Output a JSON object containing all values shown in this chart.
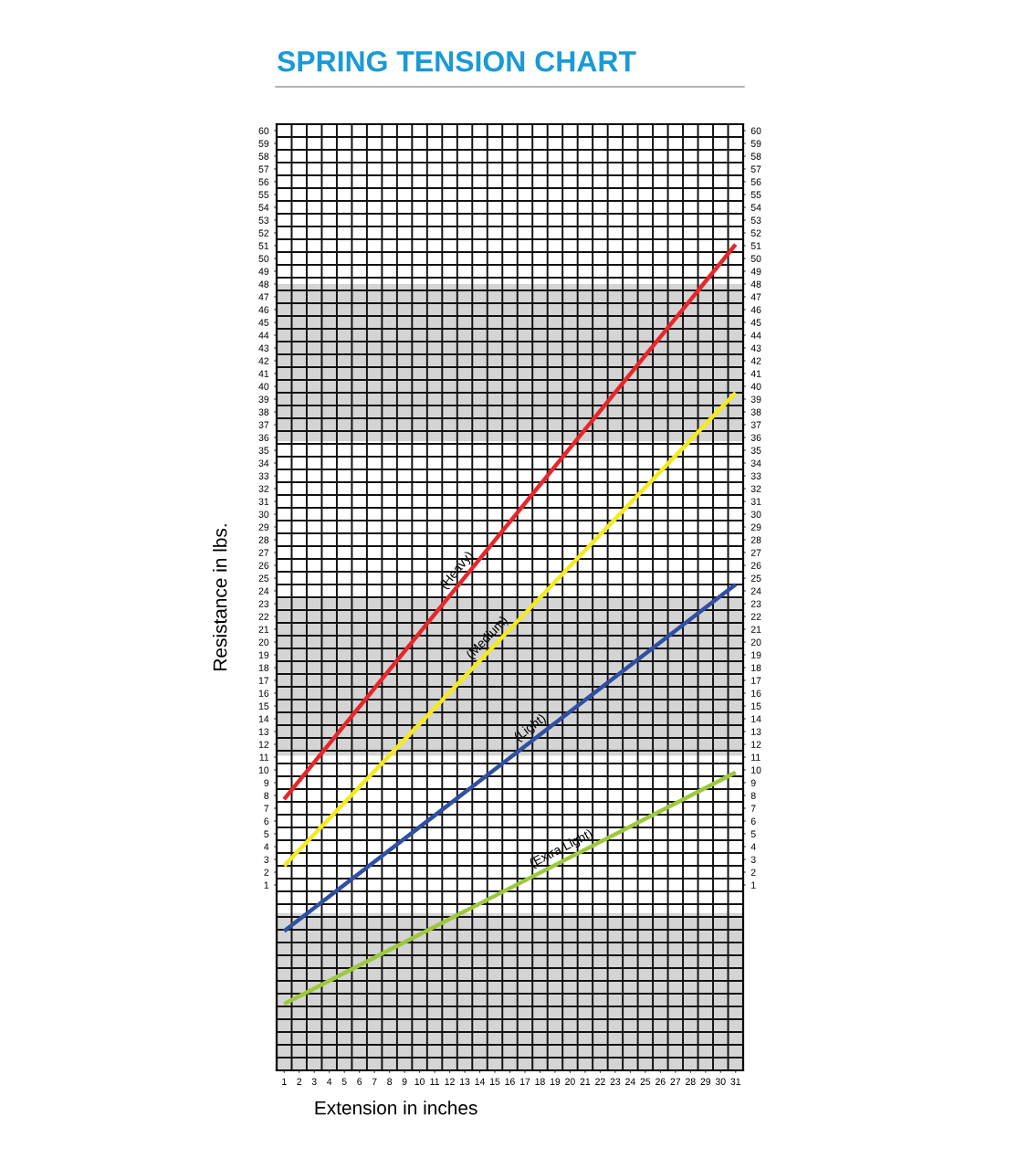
{
  "chart_data": {
    "type": "line",
    "title": "SPRING TENSION CHART",
    "xlabel": "Extension in inches",
    "ylabel": "Resistance in lbs.",
    "xlim": [
      0.5,
      31.5
    ],
    "xticks": [
      1,
      2,
      3,
      4,
      5,
      6,
      7,
      8,
      9,
      10,
      11,
      12,
      13,
      14,
      15,
      16,
      17,
      18,
      19,
      20,
      21,
      22,
      23,
      24,
      25,
      26,
      27,
      28,
      29,
      30,
      31
    ],
    "ylim": [
      -13.5,
      60.5
    ],
    "yticks": [
      1,
      2,
      3,
      4,
      5,
      6,
      7,
      8,
      9,
      10,
      11,
      12,
      13,
      14,
      15,
      16,
      17,
      18,
      19,
      20,
      21,
      22,
      23,
      24,
      25,
      26,
      27,
      28,
      29,
      30,
      31,
      32,
      33,
      34,
      35,
      36,
      37,
      38,
      39,
      40,
      41,
      42,
      43,
      44,
      45,
      46,
      47,
      48,
      49,
      50,
      51,
      52,
      53,
      54,
      55,
      56,
      57,
      58,
      59,
      60
    ],
    "y2lim": [
      -13.5,
      60.5
    ],
    "y2ticks": [
      1,
      2,
      3,
      4,
      5,
      6,
      7,
      8,
      9,
      10,
      11,
      12,
      13,
      14,
      15,
      16,
      17,
      18,
      19,
      20,
      21,
      22,
      23,
      24,
      25,
      26,
      27,
      28,
      29,
      30,
      31,
      32,
      33,
      34,
      35,
      36,
      37,
      38,
      39,
      40,
      41,
      42,
      43,
      44,
      45,
      46,
      47,
      48,
      49,
      50,
      51,
      52,
      53,
      54,
      55,
      56,
      57,
      58,
      59,
      60
    ],
    "x": [
      1,
      31
    ],
    "series": [
      {
        "color": "#e8262a",
        "values": [
          7.7,
          51.1
        ]
      },
      {
        "color": "#f5ea1c",
        "values": [
          2.5,
          39.5
        ]
      },
      {
        "color": "#2f4fa2",
        "values": [
          -2.6,
          24.5
        ]
      },
      {
        "color": "#9dc83b",
        "values": [
          -8.3,
          9.8
        ]
      }
    ],
    "annotations": [
      {
        "text": "(Heavy)",
        "x": 12.8,
        "y": 24.8
      },
      {
        "text": "(Medium)",
        "x": 14.8,
        "y": 19.5
      },
      {
        "text": "(Light)",
        "x": 17.6,
        "y": 12.4
      },
      {
        "text": "(Extra Light)",
        "x": 19.6,
        "y": 2.9
      }
    ],
    "bands": [
      {
        "axis": "y",
        "from": 35.7,
        "to": 48,
        "color": "#d4d4d4"
      },
      {
        "axis": "y",
        "from": 11.1,
        "to": 23.4,
        "color": "#d4d4d4"
      },
      {
        "axis": "y",
        "from": -13.5,
        "to": -1.2,
        "color": "#d4d4d4"
      }
    ],
    "grid": true,
    "marker": "none",
    "line_style": "solid"
  }
}
